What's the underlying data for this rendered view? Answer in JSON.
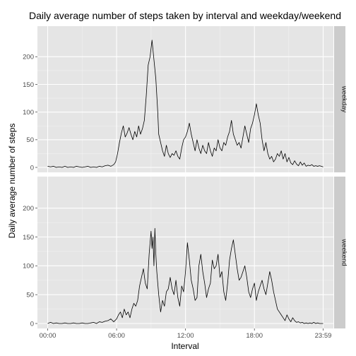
{
  "chart_data": {
    "type": "line",
    "title": "Daily average number of steps taken by interval and weekday/weekend",
    "xlabel": "Interval",
    "ylabel": "Daily average number of steps",
    "x_ticks": [
      {
        "minutes": 0,
        "label": "00:00"
      },
      {
        "minutes": 360,
        "label": "06:00"
      },
      {
        "minutes": 720,
        "label": "12:00"
      },
      {
        "minutes": 1080,
        "label": "18:00"
      },
      {
        "minutes": 1439,
        "label": "23:59"
      }
    ],
    "xlim": [
      0,
      1439
    ],
    "ylim": [
      0,
      240
    ],
    "y_ticks": [
      0,
      50,
      100,
      150,
      200
    ],
    "grid": true,
    "panels": [
      {
        "label": "weekday",
        "points": [
          [
            0,
            2
          ],
          [
            15,
            1
          ],
          [
            30,
            2
          ],
          [
            45,
            0
          ],
          [
            60,
            1
          ],
          [
            75,
            0
          ],
          [
            90,
            2
          ],
          [
            105,
            0
          ],
          [
            120,
            1
          ],
          [
            135,
            0
          ],
          [
            150,
            2
          ],
          [
            165,
            1
          ],
          [
            180,
            0
          ],
          [
            195,
            1
          ],
          [
            210,
            2
          ],
          [
            225,
            0
          ],
          [
            240,
            1
          ],
          [
            255,
            0
          ],
          [
            270,
            2
          ],
          [
            285,
            1
          ],
          [
            300,
            3
          ],
          [
            315,
            4
          ],
          [
            330,
            2
          ],
          [
            345,
            5
          ],
          [
            355,
            10
          ],
          [
            365,
            25
          ],
          [
            375,
            45
          ],
          [
            385,
            62
          ],
          [
            395,
            75
          ],
          [
            405,
            55
          ],
          [
            415,
            62
          ],
          [
            425,
            72
          ],
          [
            435,
            60
          ],
          [
            445,
            50
          ],
          [
            455,
            65
          ],
          [
            465,
            55
          ],
          [
            475,
            75
          ],
          [
            485,
            60
          ],
          [
            495,
            70
          ],
          [
            505,
            85
          ],
          [
            515,
            130
          ],
          [
            525,
            185
          ],
          [
            535,
            200
          ],
          [
            545,
            230
          ],
          [
            555,
            195
          ],
          [
            565,
            160
          ],
          [
            575,
            100
          ],
          [
            580,
            60
          ],
          [
            590,
            45
          ],
          [
            600,
            30
          ],
          [
            610,
            20
          ],
          [
            620,
            40
          ],
          [
            630,
            25
          ],
          [
            640,
            18
          ],
          [
            650,
            25
          ],
          [
            660,
            22
          ],
          [
            670,
            30
          ],
          [
            680,
            20
          ],
          [
            690,
            15
          ],
          [
            700,
            35
          ],
          [
            710,
            50
          ],
          [
            720,
            55
          ],
          [
            730,
            65
          ],
          [
            740,
            80
          ],
          [
            750,
            60
          ],
          [
            760,
            45
          ],
          [
            770,
            30
          ],
          [
            780,
            50
          ],
          [
            790,
            35
          ],
          [
            800,
            25
          ],
          [
            810,
            40
          ],
          [
            820,
            30
          ],
          [
            830,
            25
          ],
          [
            840,
            45
          ],
          [
            850,
            30
          ],
          [
            860,
            20
          ],
          [
            870,
            35
          ],
          [
            880,
            30
          ],
          [
            890,
            50
          ],
          [
            900,
            35
          ],
          [
            910,
            30
          ],
          [
            920,
            45
          ],
          [
            930,
            40
          ],
          [
            940,
            55
          ],
          [
            950,
            65
          ],
          [
            960,
            85
          ],
          [
            970,
            60
          ],
          [
            980,
            50
          ],
          [
            990,
            40
          ],
          [
            1000,
            45
          ],
          [
            1010,
            35
          ],
          [
            1020,
            55
          ],
          [
            1030,
            75
          ],
          [
            1040,
            60
          ],
          [
            1050,
            45
          ],
          [
            1060,
            70
          ],
          [
            1070,
            80
          ],
          [
            1080,
            95
          ],
          [
            1090,
            115
          ],
          [
            1100,
            95
          ],
          [
            1110,
            80
          ],
          [
            1120,
            50
          ],
          [
            1130,
            30
          ],
          [
            1140,
            45
          ],
          [
            1150,
            25
          ],
          [
            1160,
            15
          ],
          [
            1170,
            20
          ],
          [
            1180,
            10
          ],
          [
            1190,
            15
          ],
          [
            1200,
            25
          ],
          [
            1210,
            20
          ],
          [
            1220,
            30
          ],
          [
            1230,
            15
          ],
          [
            1240,
            25
          ],
          [
            1250,
            10
          ],
          [
            1260,
            18
          ],
          [
            1270,
            8
          ],
          [
            1280,
            5
          ],
          [
            1290,
            12
          ],
          [
            1300,
            6
          ],
          [
            1310,
            3
          ],
          [
            1320,
            10
          ],
          [
            1330,
            4
          ],
          [
            1340,
            8
          ],
          [
            1350,
            2
          ],
          [
            1360,
            4
          ],
          [
            1370,
            3
          ],
          [
            1380,
            5
          ],
          [
            1390,
            2
          ],
          [
            1400,
            3
          ],
          [
            1410,
            2
          ],
          [
            1420,
            3
          ],
          [
            1439,
            1
          ]
        ]
      },
      {
        "label": "weekend",
        "points": [
          [
            0,
            0
          ],
          [
            15,
            2
          ],
          [
            30,
            0
          ],
          [
            45,
            1
          ],
          [
            60,
            0
          ],
          [
            75,
            0
          ],
          [
            90,
            1
          ],
          [
            105,
            0
          ],
          [
            120,
            0
          ],
          [
            135,
            1
          ],
          [
            150,
            0
          ],
          [
            165,
            0
          ],
          [
            180,
            1
          ],
          [
            195,
            0
          ],
          [
            210,
            0
          ],
          [
            225,
            1
          ],
          [
            240,
            2
          ],
          [
            255,
            0
          ],
          [
            270,
            3
          ],
          [
            285,
            2
          ],
          [
            300,
            4
          ],
          [
            315,
            5
          ],
          [
            330,
            8
          ],
          [
            345,
            3
          ],
          [
            360,
            8
          ],
          [
            370,
            15
          ],
          [
            380,
            20
          ],
          [
            390,
            10
          ],
          [
            400,
            25
          ],
          [
            410,
            15
          ],
          [
            420,
            20
          ],
          [
            430,
            10
          ],
          [
            440,
            25
          ],
          [
            450,
            35
          ],
          [
            460,
            30
          ],
          [
            470,
            40
          ],
          [
            480,
            65
          ],
          [
            490,
            80
          ],
          [
            500,
            95
          ],
          [
            510,
            70
          ],
          [
            520,
            60
          ],
          [
            530,
            120
          ],
          [
            540,
            160
          ],
          [
            545,
            130
          ],
          [
            550,
            150
          ],
          [
            555,
            100
          ],
          [
            560,
            165
          ],
          [
            565,
            120
          ],
          [
            570,
            90
          ],
          [
            580,
            50
          ],
          [
            590,
            20
          ],
          [
            600,
            40
          ],
          [
            610,
            30
          ],
          [
            620,
            55
          ],
          [
            630,
            60
          ],
          [
            640,
            80
          ],
          [
            650,
            60
          ],
          [
            660,
            50
          ],
          [
            670,
            75
          ],
          [
            680,
            45
          ],
          [
            690,
            30
          ],
          [
            700,
            65
          ],
          [
            710,
            55
          ],
          [
            720,
            90
          ],
          [
            730,
            140
          ],
          [
            740,
            110
          ],
          [
            750,
            75
          ],
          [
            760,
            60
          ],
          [
            770,
            40
          ],
          [
            780,
            45
          ],
          [
            790,
            100
          ],
          [
            800,
            120
          ],
          [
            810,
            90
          ],
          [
            820,
            70
          ],
          [
            830,
            45
          ],
          [
            840,
            60
          ],
          [
            850,
            70
          ],
          [
            860,
            110
          ],
          [
            870,
            95
          ],
          [
            880,
            100
          ],
          [
            890,
            120
          ],
          [
            900,
            80
          ],
          [
            910,
            90
          ],
          [
            920,
            55
          ],
          [
            930,
            40
          ],
          [
            940,
            70
          ],
          [
            950,
            110
          ],
          [
            960,
            130
          ],
          [
            970,
            145
          ],
          [
            980,
            120
          ],
          [
            990,
            95
          ],
          [
            1000,
            75
          ],
          [
            1010,
            80
          ],
          [
            1020,
            90
          ],
          [
            1030,
            100
          ],
          [
            1040,
            80
          ],
          [
            1050,
            55
          ],
          [
            1060,
            45
          ],
          [
            1070,
            60
          ],
          [
            1080,
            70
          ],
          [
            1090,
            40
          ],
          [
            1100,
            55
          ],
          [
            1110,
            65
          ],
          [
            1120,
            75
          ],
          [
            1130,
            60
          ],
          [
            1140,
            50
          ],
          [
            1150,
            70
          ],
          [
            1160,
            90
          ],
          [
            1170,
            75
          ],
          [
            1180,
            55
          ],
          [
            1190,
            40
          ],
          [
            1200,
            25
          ],
          [
            1210,
            20
          ],
          [
            1220,
            15
          ],
          [
            1230,
            10
          ],
          [
            1240,
            5
          ],
          [
            1250,
            15
          ],
          [
            1260,
            8
          ],
          [
            1270,
            3
          ],
          [
            1280,
            10
          ],
          [
            1290,
            5
          ],
          [
            1300,
            2
          ],
          [
            1310,
            3
          ],
          [
            1320,
            1
          ],
          [
            1330,
            2
          ],
          [
            1340,
            0
          ],
          [
            1350,
            1
          ],
          [
            1360,
            0
          ],
          [
            1370,
            1
          ],
          [
            1380,
            0
          ],
          [
            1390,
            2
          ],
          [
            1400,
            0
          ],
          [
            1410,
            1
          ],
          [
            1420,
            0
          ],
          [
            1439,
            0
          ]
        ]
      }
    ]
  }
}
